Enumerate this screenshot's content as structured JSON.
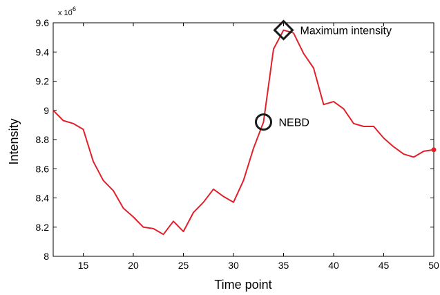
{
  "chart_data": {
    "type": "line",
    "xlabel": "Time point",
    "ylabel": "Intensity",
    "xlim": [
      12,
      50
    ],
    "ylim": [
      8.0,
      9.6
    ],
    "y_scale_multiplier": "x 10",
    "y_scale_exponent": "-6",
    "x_ticks": [
      15,
      20,
      25,
      30,
      35,
      40,
      45,
      50
    ],
    "y_ticks": [
      8,
      8.2,
      8.4,
      8.6,
      8.8,
      9,
      9.2,
      9.4,
      9.6
    ],
    "y_tick_labels": [
      "8",
      "8.2",
      "8.4",
      "8.6",
      "8.8",
      "9",
      "9.2",
      "9.4",
      "9.6"
    ],
    "grid": false,
    "series": [
      {
        "color": "#e0202a",
        "x": [
          12,
          13,
          14,
          15,
          16,
          17,
          18,
          19,
          20,
          21,
          22,
          23,
          24,
          25,
          26,
          27,
          28,
          29,
          30,
          31,
          32,
          33,
          34,
          35,
          36,
          37,
          38,
          39,
          40,
          41,
          42,
          43,
          44,
          45,
          46,
          47,
          48,
          49,
          50
        ],
        "y": [
          9.0,
          8.93,
          8.91,
          8.87,
          8.65,
          8.52,
          8.45,
          8.33,
          8.27,
          8.2,
          8.19,
          8.15,
          8.24,
          8.17,
          8.3,
          8.37,
          8.46,
          8.41,
          8.37,
          8.52,
          8.74,
          8.92,
          9.42,
          9.55,
          9.53,
          9.39,
          9.29,
          9.04,
          9.06,
          9.01,
          8.91,
          8.89,
          8.89,
          8.81,
          8.75,
          8.7,
          8.68,
          8.72,
          8.73
        ]
      }
    ],
    "annotations": [
      {
        "label": "NEBD",
        "x": 33,
        "y": 8.92,
        "marker": "circle"
      },
      {
        "label": "Maximum intensity",
        "x": 35,
        "y": 9.55,
        "marker": "diamond"
      }
    ]
  }
}
